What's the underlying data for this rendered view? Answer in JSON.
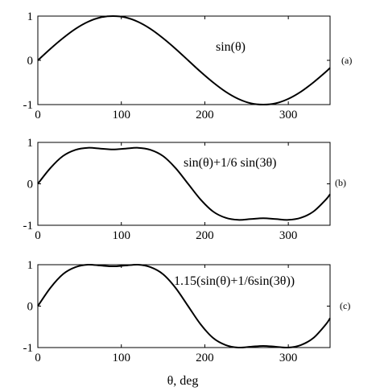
{
  "chart_data": [
    {
      "type": "line",
      "panel_label": "(a)",
      "annotation": "sin(θ)",
      "xlim": [
        0,
        350
      ],
      "ylim": [
        -1,
        1
      ],
      "x_ticks": [
        0,
        100,
        200,
        300
      ],
      "y_ticks": [
        -1,
        0,
        1
      ],
      "x_tick_labels": [
        "0",
        "100",
        "200",
        "300"
      ],
      "y_tick_labels": [
        "-1",
        "0",
        "1"
      ],
      "series": [
        {
          "color": "#000000",
          "x": [
            0,
            15,
            30,
            45,
            60,
            75,
            90,
            105,
            120,
            135,
            150,
            165,
            180,
            195,
            210,
            225,
            240,
            255,
            270,
            285,
            300,
            315,
            330,
            345,
            350
          ],
          "y": [
            0.0,
            0.26,
            0.5,
            0.71,
            0.87,
            0.97,
            1.0,
            0.97,
            0.87,
            0.71,
            0.5,
            0.26,
            0.0,
            -0.26,
            -0.5,
            -0.71,
            -0.87,
            -0.97,
            -1.0,
            -0.97,
            -0.87,
            -0.71,
            -0.5,
            -0.26,
            -0.17
          ]
        }
      ]
    },
    {
      "type": "line",
      "panel_label": "(b)",
      "annotation": "sin(θ)+1/6 sin(3θ)",
      "xlim": [
        0,
        350
      ],
      "ylim": [
        -1,
        1
      ],
      "x_ticks": [
        0,
        100,
        200,
        300
      ],
      "y_ticks": [
        -1,
        0,
        1
      ],
      "x_tick_labels": [
        "0",
        "100",
        "200",
        "300"
      ],
      "y_tick_labels": [
        "-1",
        "0",
        "1"
      ],
      "series": [
        {
          "color": "#000000",
          "x": [
            0,
            15,
            30,
            45,
            60,
            75,
            90,
            105,
            120,
            135,
            150,
            165,
            180,
            195,
            210,
            225,
            240,
            255,
            270,
            285,
            300,
            315,
            330,
            345,
            350
          ],
          "y": [
            0.0,
            0.38,
            0.67,
            0.82,
            0.87,
            0.85,
            0.83,
            0.85,
            0.87,
            0.82,
            0.67,
            0.38,
            0.0,
            -0.38,
            -0.67,
            -0.82,
            -0.87,
            -0.85,
            -0.83,
            -0.85,
            -0.87,
            -0.82,
            -0.67,
            -0.38,
            -0.25
          ]
        }
      ]
    },
    {
      "type": "line",
      "panel_label": "(c)",
      "annotation": "1.15(sin(θ)+1/6sin(3θ))",
      "xlabel": "θ, deg",
      "xlim": [
        0,
        350
      ],
      "ylim": [
        -1,
        1
      ],
      "x_ticks": [
        0,
        100,
        200,
        300
      ],
      "y_ticks": [
        -1,
        0,
        1
      ],
      "x_tick_labels": [
        "0",
        "100",
        "200",
        "300"
      ],
      "y_tick_labels": [
        "-1",
        "0",
        "1"
      ],
      "series": [
        {
          "color": "#000000",
          "x": [
            0,
            15,
            30,
            45,
            60,
            75,
            90,
            105,
            120,
            135,
            150,
            165,
            180,
            195,
            210,
            225,
            240,
            255,
            270,
            285,
            300,
            315,
            330,
            345,
            350
          ],
          "y": [
            0.0,
            0.44,
            0.77,
            0.94,
            1.0,
            0.98,
            0.96,
            0.98,
            1.0,
            0.94,
            0.77,
            0.44,
            0.0,
            -0.44,
            -0.77,
            -0.94,
            -1.0,
            -0.98,
            -0.96,
            -0.98,
            -1.0,
            -0.94,
            -0.77,
            -0.44,
            -0.29
          ]
        }
      ]
    }
  ]
}
